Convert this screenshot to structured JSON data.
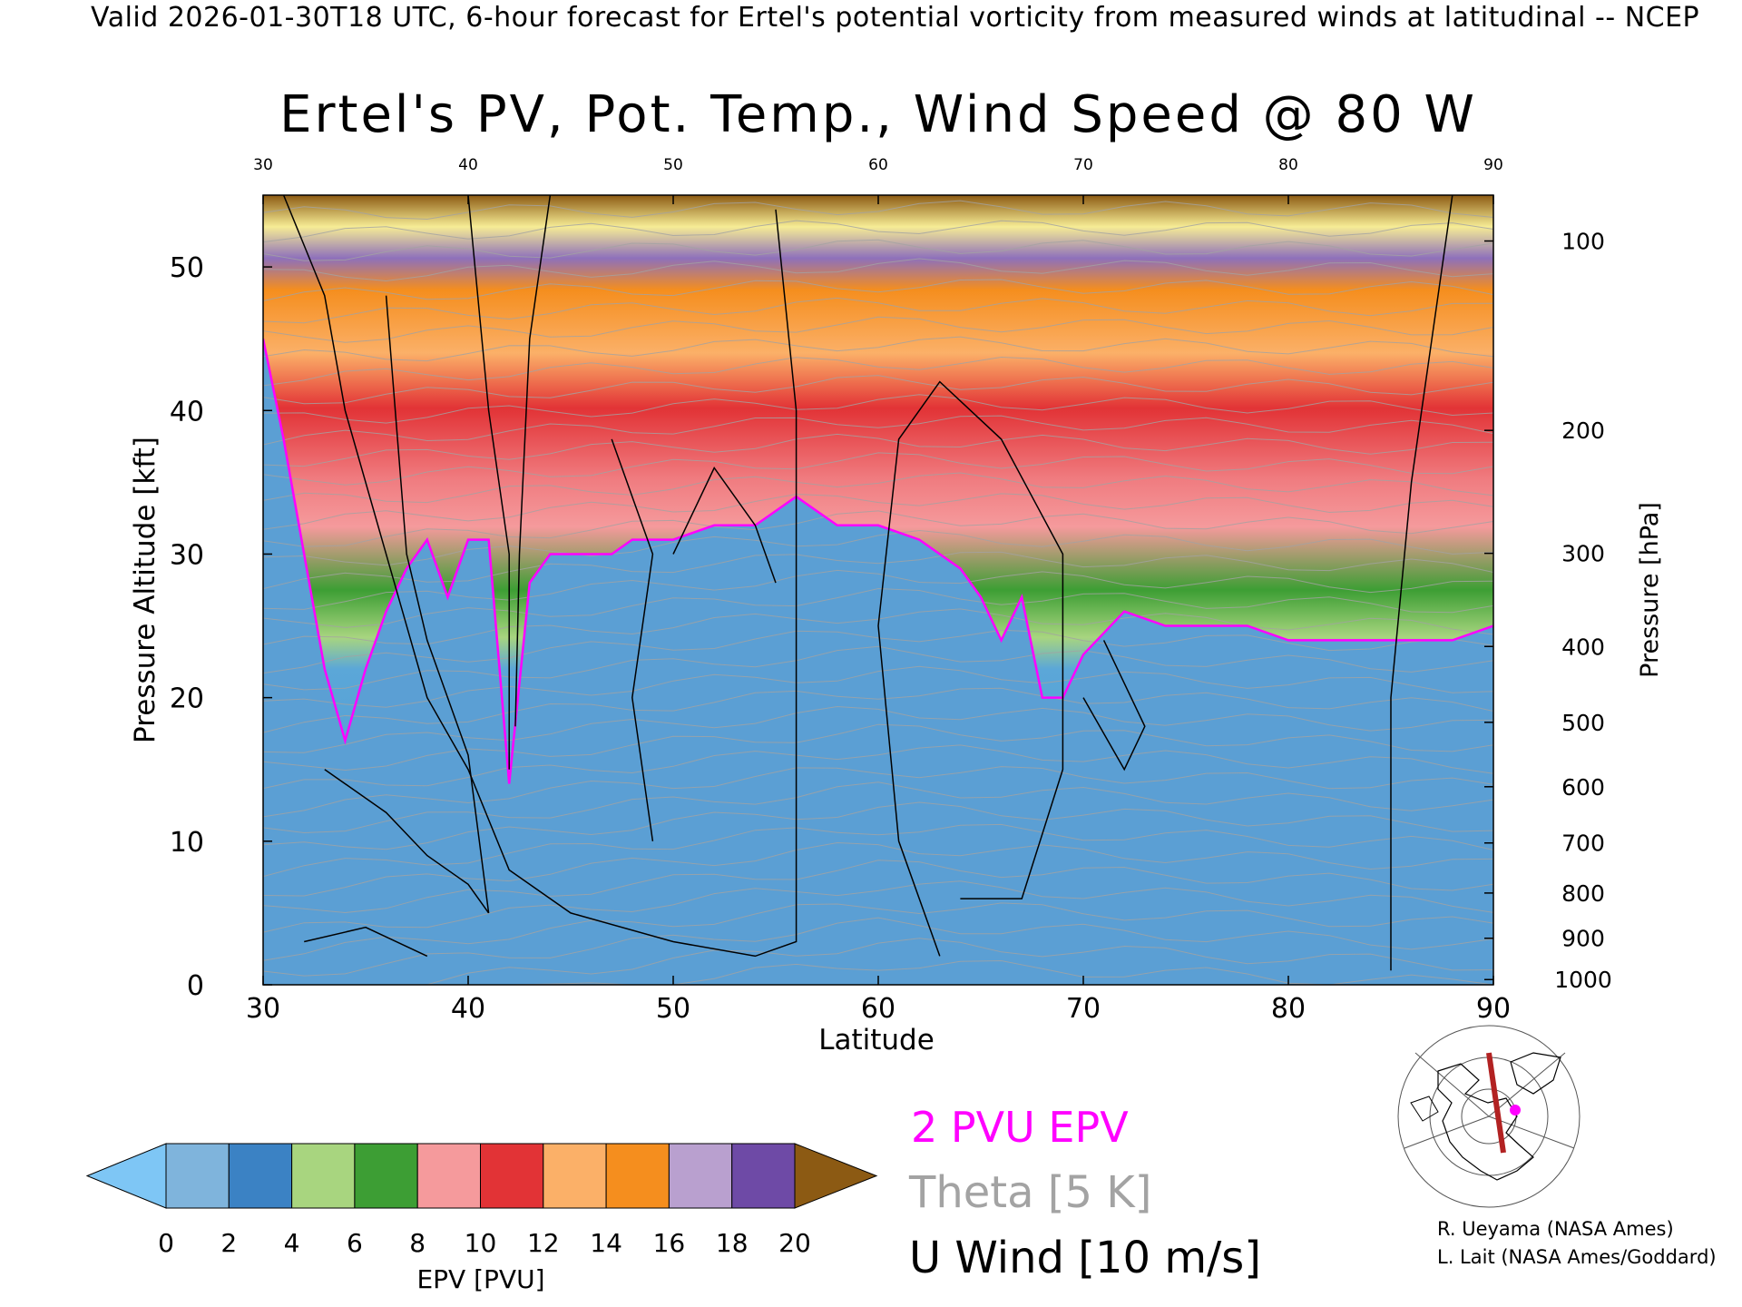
{
  "header": "Valid 2026-01-30T18 UTC, 6-hour forecast for Ertel's potential vorticity from measured winds at latitudinal -- NCEP",
  "chart_data": {
    "type": "heatmap",
    "title": "Ertel's PV, Pot. Temp., Wind Speed @ 80 W",
    "xlabel": "Latitude",
    "ylabel": "Pressure Altitude [kft]",
    "y2label": "Pressure [hPa]",
    "xlim": [
      30,
      90
    ],
    "ylim": [
      0,
      55
    ],
    "x_ticks": [
      30,
      40,
      50,
      60,
      70,
      80,
      90
    ],
    "x_ticks_top": [
      30,
      40,
      50,
      60,
      70,
      80,
      90
    ],
    "y_ticks": [
      0,
      10,
      20,
      30,
      40,
      50
    ],
    "pressure_ticks": [
      1000,
      900,
      800,
      700,
      600,
      500,
      400,
      300,
      200,
      100
    ],
    "tropopause_2pvu_kft": {
      "lat": [
        30,
        31,
        32,
        33,
        34,
        35,
        36,
        37,
        38,
        39,
        40,
        41,
        42,
        43,
        44,
        45,
        46,
        47,
        48,
        50,
        52,
        54,
        56,
        58,
        60,
        62,
        63,
        64,
        65,
        66,
        67,
        68,
        69,
        70,
        72,
        74,
        76,
        78,
        80,
        82,
        84,
        86,
        88,
        90
      ],
      "kft": [
        45,
        38,
        30,
        22,
        17,
        22,
        26,
        29,
        31,
        27,
        31,
        31,
        14,
        28,
        30,
        30,
        30,
        30,
        31,
        31,
        32,
        32,
        34,
        32,
        32,
        31,
        30,
        29,
        27,
        24,
        27,
        20,
        20,
        23,
        26,
        25,
        25,
        25,
        24,
        24,
        24,
        24,
        24,
        25
      ]
    },
    "pv_colorbar": {
      "label": "EPV [PVU]",
      "ticks": [
        0,
        2,
        4,
        6,
        8,
        10,
        12,
        14,
        16,
        18,
        20
      ],
      "colors": [
        "#7fb4dc",
        "#3b82c4",
        "#a8d57f",
        "#3d9e34",
        "#f59a9c",
        "#e23336",
        "#fbb068",
        "#f58e1e",
        "#b9a0cf",
        "#6e4aa6",
        "#f6ec95"
      ],
      "under_color": "#7ec6f5",
      "over_color": "#8c5a13"
    },
    "legend": {
      "pv_contour": "2 PVU EPV",
      "theta": "Theta [5 K]",
      "wind": "U Wind [10 m/s]"
    }
  },
  "credits": [
    "R. Ueyama (NASA Ames)",
    "L. Lait (NASA Ames/Goddard)"
  ],
  "colors": {
    "pv_contour": "#ff00ff",
    "theta": "#a3a3a3",
    "wind": "#000000"
  }
}
